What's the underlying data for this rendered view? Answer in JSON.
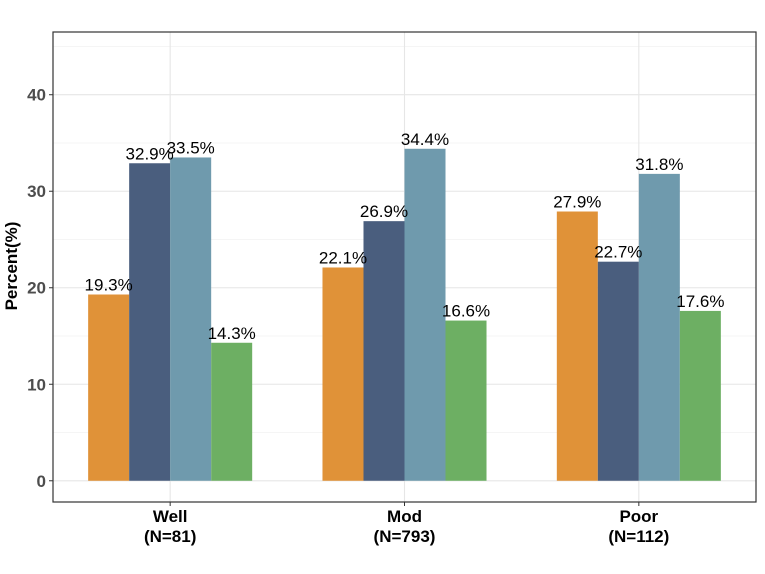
{
  "chart_data": {
    "type": "bar",
    "categories": [
      {
        "name": "Well",
        "n": "(N=81)"
      },
      {
        "name": "Mod",
        "n": "(N=793)"
      },
      {
        "name": "Poor",
        "n": "(N=112)"
      }
    ],
    "series": [
      {
        "color": "#e09238",
        "values": [
          19.3,
          22.1,
          27.9
        ],
        "labels": [
          "19.3%",
          "22.1%",
          "27.9%"
        ]
      },
      {
        "color": "#4a5e7e",
        "values": [
          32.9,
          26.9,
          22.7
        ],
        "labels": [
          "32.9%",
          "26.9%",
          "22.7%"
        ]
      },
      {
        "color": "#6f9aad",
        "values": [
          33.5,
          34.4,
          31.8
        ],
        "labels": [
          "33.5%",
          "34.4%",
          "31.8%"
        ]
      },
      {
        "color": "#6daf63",
        "values": [
          14.3,
          16.6,
          17.6
        ],
        "labels": [
          "14.3%",
          "16.6%",
          "17.6%"
        ]
      }
    ],
    "title": "",
    "xlabel": "",
    "ylabel": "Percent(%)",
    "ylim": [
      -2.2,
      46.5
    ],
    "yticks": [
      0,
      10,
      20,
      30,
      40
    ],
    "grid": true,
    "legend": "none"
  }
}
